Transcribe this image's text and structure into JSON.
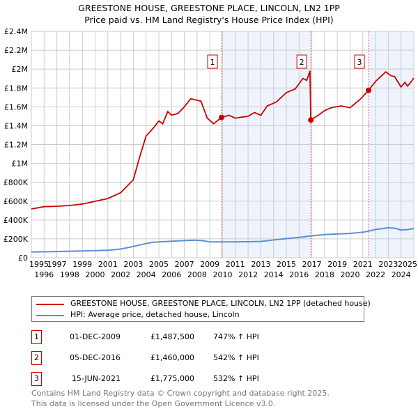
{
  "chart_data": {
    "type": "line",
    "title": "GREESTONE HOUSE, GREESTONE PLACE, LINCOLN, LN2 1PP",
    "subtitle": "Price paid vs. HM Land Registry's House Price Index (HPI)",
    "xlabel": "",
    "ylabel": "",
    "xlim": [
      1995,
      2025
    ],
    "ylim": [
      0,
      2400000
    ],
    "grid": true,
    "x_ticks": [
      "1995",
      "1996",
      "1997",
      "1998",
      "1999",
      "2000",
      "2001",
      "2002",
      "2003",
      "2004",
      "2005",
      "2006",
      "2007",
      "2008",
      "2009",
      "2010",
      "2011",
      "2012",
      "2013",
      "2014",
      "2015",
      "2016",
      "2017",
      "2018",
      "2019",
      "2020",
      "2021",
      "2022",
      "2023",
      "2024",
      "2025"
    ],
    "y_ticks": [
      {
        "value": 0,
        "label": "£0"
      },
      {
        "value": 200000,
        "label": "£200K"
      },
      {
        "value": 400000,
        "label": "£400K"
      },
      {
        "value": 600000,
        "label": "£600K"
      },
      {
        "value": 800000,
        "label": "£800K"
      },
      {
        "value": 1000000,
        "label": "£1M"
      },
      {
        "value": 1200000,
        "label": "£1.2M"
      },
      {
        "value": 1400000,
        "label": "£1.4M"
      },
      {
        "value": 1600000,
        "label": "£1.6M"
      },
      {
        "value": 1800000,
        "label": "£1.8M"
      },
      {
        "value": 2000000,
        "label": "£2M"
      },
      {
        "value": 2200000,
        "label": "£2.2M"
      },
      {
        "value": 2400000,
        "label": "£2.4M"
      }
    ],
    "series": [
      {
        "name": "GREESTONE HOUSE, GREESTONE PLACE, LINCOLN, LN2 1PP (detached house)",
        "color": "#cc0000",
        "x": [
          1995,
          1996,
          1997,
          1998,
          1999,
          2000,
          2001,
          2002,
          2003,
          2003.5,
          2004,
          2004.6,
          2005,
          2005.3,
          2005.7,
          2006,
          2006.5,
          2007,
          2007.5,
          2008.3,
          2008.8,
          2009.3,
          2009.92,
          2010.5,
          2011,
          2011.5,
          2012,
          2012.5,
          2013,
          2013.5,
          2014.2,
          2015,
          2015.7,
          2016.3,
          2016.6,
          2016.85,
          2016.92,
          2017.5,
          2018,
          2018.5,
          2019.3,
          2020,
          2020.8,
          2021.45,
          2022,
          2022.8,
          2023.2,
          2023.5,
          2024,
          2024.3,
          2024.5,
          2024.7,
          2025
        ],
        "values": [
          517000,
          541000,
          546000,
          554000,
          569000,
          598000,
          628000,
          689000,
          827000,
          1070000,
          1290000,
          1380000,
          1450000,
          1420000,
          1550000,
          1510000,
          1530000,
          1600000,
          1685000,
          1660000,
          1480000,
          1420000,
          1487500,
          1510000,
          1480000,
          1490000,
          1500000,
          1540000,
          1510000,
          1610000,
          1650000,
          1750000,
          1790000,
          1900000,
          1880000,
          1980000,
          1460000,
          1510000,
          1560000,
          1590000,
          1610000,
          1590000,
          1680000,
          1775000,
          1870000,
          1970000,
          1930000,
          1920000,
          1810000,
          1860000,
          1820000,
          1850000,
          1905000
        ]
      },
      {
        "name": "HPI: Average price, detached house, Lincoln",
        "color": "#5b8fd4",
        "x": [
          1995,
          1997,
          2000,
          2001,
          2002,
          2003,
          2003.5,
          2004,
          2004.5,
          2005.5,
          2007,
          2007.8,
          2008.5,
          2009,
          2010,
          2012,
          2013,
          2014,
          2015,
          2016,
          2016.92,
          2018,
          2019,
          2020,
          2021,
          2021.45,
          2022,
          2022.5,
          2023,
          2023.5,
          2024,
          2024.5,
          2025
        ],
        "values": [
          61000,
          66000,
          75000,
          80000,
          92000,
          120000,
          135000,
          150000,
          163000,
          172000,
          182000,
          187000,
          180000,
          168000,
          168000,
          170000,
          173000,
          188000,
          203000,
          216000,
          231000,
          245000,
          252000,
          258000,
          270000,
          282000,
          300000,
          308000,
          318000,
          313000,
          295000,
          298000,
          310000
        ]
      }
    ],
    "sales": [
      {
        "label": "1",
        "x": 2009.92,
        "value": 1487500
      },
      {
        "label": "2",
        "x": 2016.92,
        "value": 1460000
      },
      {
        "label": "3",
        "x": 2021.45,
        "value": 1775000
      }
    ],
    "shaded_ranges": [
      [
        2009.92,
        2016.92
      ],
      [
        2021.45,
        2025
      ]
    ]
  },
  "legend": [
    {
      "label": "GREESTONE HOUSE, GREESTONE PLACE, LINCOLN, LN2 1PP (detached house)",
      "color": "#cc0000"
    },
    {
      "label": "HPI: Average price, detached house, Lincoln",
      "color": "#5b8fd4"
    }
  ],
  "transactions": [
    {
      "num": "1",
      "date": "01-DEC-2009",
      "price": "£1,487,500",
      "hpi": "747% ↑ HPI"
    },
    {
      "num": "2",
      "date": "05-DEC-2016",
      "price": "£1,460,000",
      "hpi": "542% ↑ HPI"
    },
    {
      "num": "3",
      "date": "15-JUN-2021",
      "price": "£1,775,000",
      "hpi": "532% ↑ HPI"
    }
  ],
  "footer": {
    "line1": "Contains HM Land Registry data © Crown copyright and database right 2025.",
    "line2": "This data is licensed under the Open Government Licence v3.0."
  }
}
